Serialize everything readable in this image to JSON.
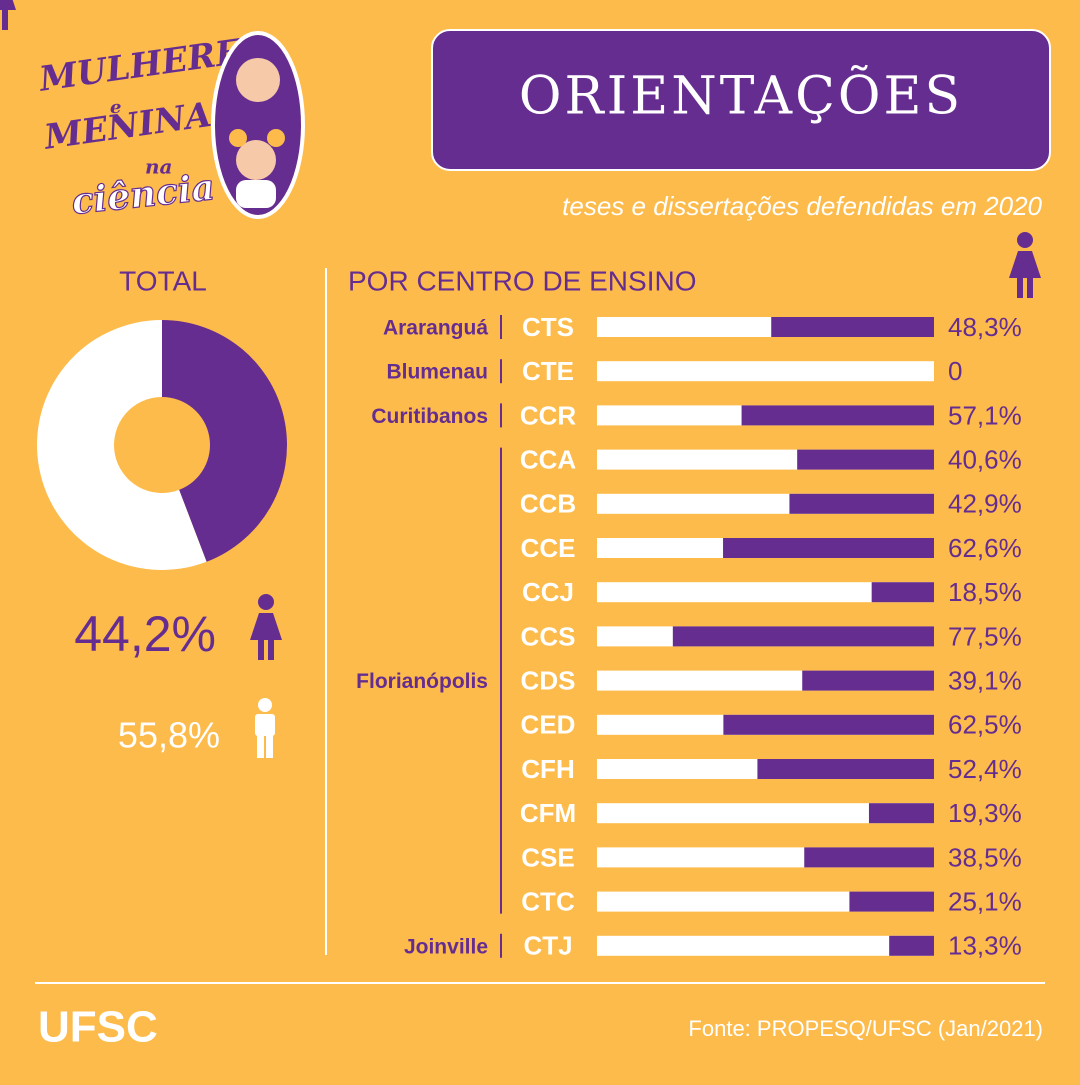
{
  "logo": {
    "line1": "MULHERES",
    "line2": "e",
    "line3": "MENINAS",
    "line4": "na",
    "line5": "ciência"
  },
  "header": {
    "title": "ORIENTAÇÕES",
    "subtitle": "teses e dissertações defendidas em 2020"
  },
  "chart_data": [
    {
      "type": "pie",
      "title": "TOTAL",
      "values": [
        44.2,
        55.8
      ],
      "value_labels": [
        "44,2%",
        "55,8%"
      ],
      "colors": [
        "#662d91",
        "#ffffff"
      ],
      "donut": true
    },
    {
      "type": "bar",
      "title": "POR CENTRO DE ENSINO",
      "xlim": [
        0,
        100
      ],
      "color": "#662d91",
      "track_color": "#ffffff",
      "groups": [
        {
          "name": "Araranguá",
          "categories": [
            "CTS"
          ],
          "values": [
            48.3
          ],
          "value_labels": [
            "48,3%"
          ]
        },
        {
          "name": "Blumenau",
          "categories": [
            "CTE"
          ],
          "values": [
            0
          ],
          "value_labels": [
            "0"
          ]
        },
        {
          "name": "Curitibanos",
          "categories": [
            "CCR"
          ],
          "values": [
            57.1
          ],
          "value_labels": [
            "57,1%"
          ]
        },
        {
          "name": "Florianópolis",
          "categories": [
            "CCA",
            "CCB",
            "CCE",
            "CCJ",
            "CCS",
            "CDS",
            "CED",
            "CFH",
            "CFM",
            "CSE",
            "CTC"
          ],
          "values": [
            40.6,
            42.9,
            62.6,
            18.5,
            77.5,
            39.1,
            62.5,
            52.4,
            19.3,
            38.5,
            25.1
          ],
          "value_labels": [
            "40,6%",
            "42,9%",
            "62,6%",
            "18,5%",
            "77,5%",
            "39,1%",
            "62,5%",
            "52,4%",
            "19,3%",
            "38,5%",
            "25,1%"
          ]
        },
        {
          "name": "Joinville",
          "categories": [
            "CTJ"
          ],
          "values": [
            13.3
          ],
          "value_labels": [
            "13,3%"
          ]
        }
      ]
    }
  ],
  "footer": {
    "brand": "UFSC",
    "source": "Fonte: PROPESQ/UFSC (Jan/2021)"
  }
}
